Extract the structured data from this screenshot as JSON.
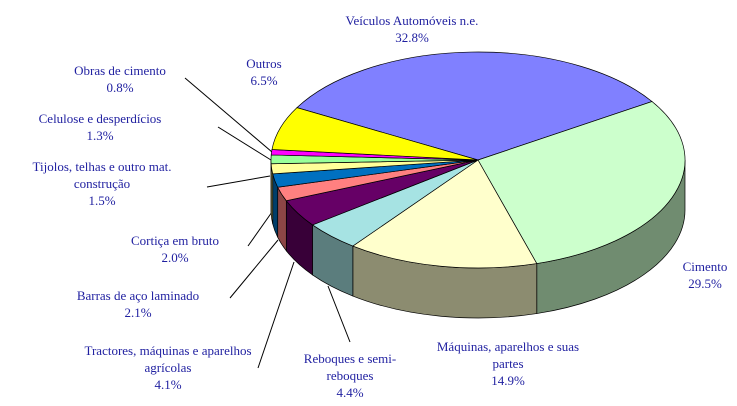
{
  "chart_data": {
    "type": "pie",
    "categories": [
      "Veículos Automóveis n.e.",
      "Cimento",
      "Máquinas, aparelhos e suas partes",
      "Reboques e semi-reboques",
      "Tractores, máquinas e aparelhos agrícolas",
      "Barras de aço laminado",
      "Cortiça em bruto",
      "Tijolos, telhas e outro mat. construção",
      "Celulose e desperdícios",
      "Obras de cimento",
      "Outros"
    ],
    "values": [
      32.8,
      29.5,
      14.9,
      4.4,
      4.1,
      2.1,
      2.0,
      1.5,
      1.3,
      0.8,
      6.5
    ],
    "value_labels": [
      "32.8%",
      "29.5%",
      "14.9%",
      "4.4%",
      "4.1%",
      "2.1%",
      "2.0%",
      "1.5%",
      "1.3%",
      "0.8%",
      "6.5%"
    ],
    "colors": [
      "#8080ff",
      "#ccffcc",
      "#ffffcc",
      "#a6e3e3",
      "#660066",
      "#ff8080",
      "#0070c0",
      "#ffff99",
      "#99ff99",
      "#ff00ff",
      "#ffff00"
    ]
  }
}
